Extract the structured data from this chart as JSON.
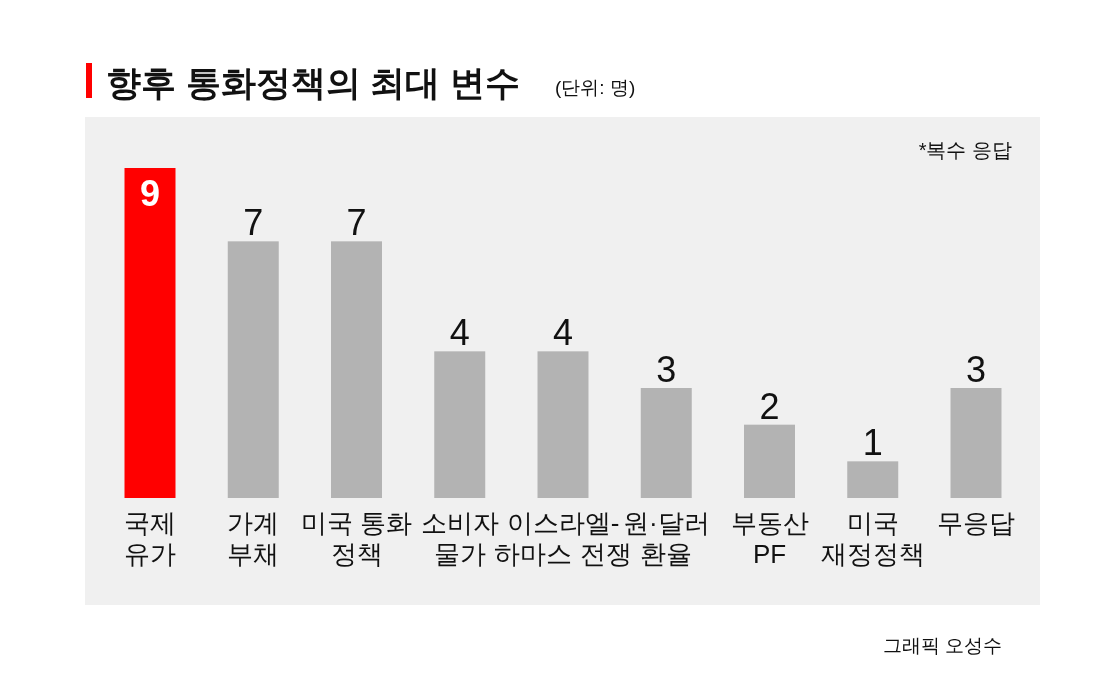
{
  "chart_data": {
    "type": "bar",
    "title": "향후 통화정책의 최대 변수",
    "subtitle": "(단위: 명)",
    "categories": [
      "국제\n유가",
      "가계\n부채",
      "미국 통화\n정책",
      "소비자\n물가",
      "이스라엘-\n하마스 전쟁",
      "원·달러\n환율",
      "부동산\nPF",
      "미국\n재정정책",
      "무응답"
    ],
    "values": [
      9,
      7,
      7,
      4,
      4,
      3,
      2,
      1,
      3
    ],
    "colors": [
      "#ff0000",
      "#b3b3b3",
      "#b3b3b3",
      "#b3b3b3",
      "#b3b3b3",
      "#b3b3b3",
      "#b3b3b3",
      "#b3b3b3",
      "#b3b3b3"
    ],
    "data_labels": true,
    "annotations": [
      "*복수 응답",
      "그래픽 오성수"
    ]
  }
}
